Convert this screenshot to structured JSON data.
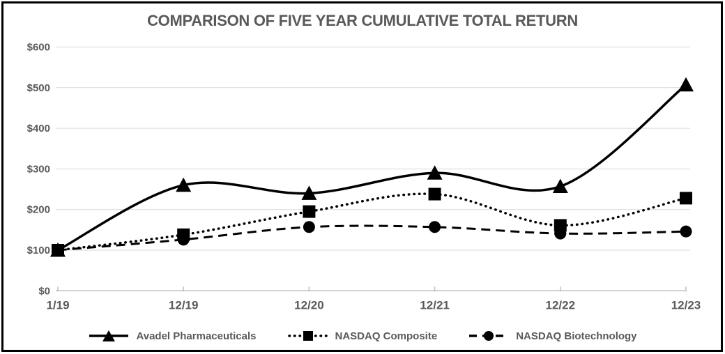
{
  "title": "COMPARISON OF FIVE YEAR CUMULATIVE TOTAL RETURN",
  "chart_data": {
    "type": "line",
    "title": "COMPARISON OF FIVE YEAR CUMULATIVE TOTAL RETURN",
    "categories": [
      "1/19",
      "12/19",
      "12/20",
      "12/21",
      "12/22",
      "12/23"
    ],
    "y_ticks": [
      {
        "label": "$600",
        "value": 600
      },
      {
        "label": "$500",
        "value": 500
      },
      {
        "label": "$400",
        "value": 400
      },
      {
        "label": "$300",
        "value": 300
      },
      {
        "label": "$200",
        "value": 200
      },
      {
        "label": "$100",
        "value": 100
      },
      {
        "label": "$0",
        "value": 0
      }
    ],
    "ylim": [
      0,
      600
    ],
    "grid": true,
    "legend_position": "bottom",
    "line_smoothing": true,
    "series": [
      {
        "name": "Avadel Pharmaceuticals",
        "marker": "triangle",
        "line": "solid",
        "values": [
          100,
          260,
          240,
          290,
          257,
          507
        ]
      },
      {
        "name": "NASDAQ Composite",
        "marker": "square",
        "line": "dotted",
        "values": [
          100,
          138,
          195,
          238,
          161,
          228
        ]
      },
      {
        "name": "NASDAQ Biotechnology",
        "marker": "circle",
        "line": "dashed",
        "values": [
          100,
          126,
          157,
          157,
          141,
          146
        ]
      }
    ],
    "colors": {
      "series": "#000000",
      "gridline": "#d9d9d9",
      "axis": "#bfbfbf",
      "tick_text": "#595959",
      "title_text": "#595959"
    }
  }
}
